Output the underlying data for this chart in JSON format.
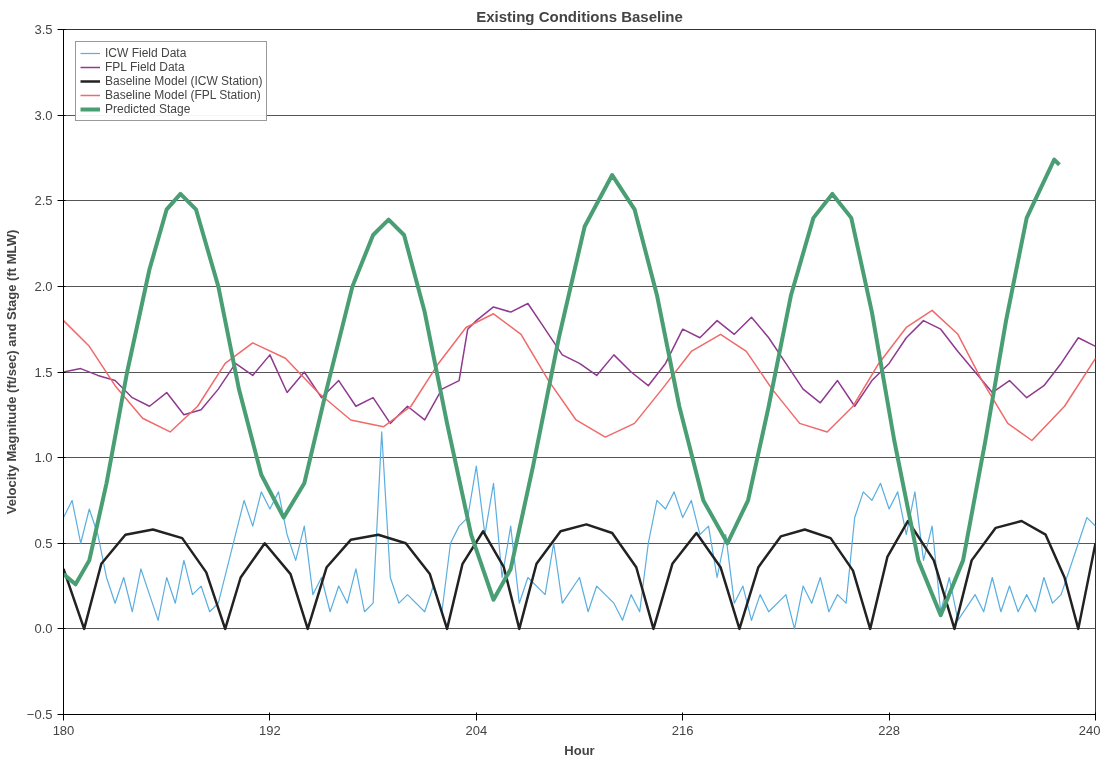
{
  "chart_data": {
    "type": "line",
    "title": "Existing Conditions Baseline",
    "xlabel": "Hour",
    "ylabel": "Velocity Magnitude (ft/sec) and Stage (ft MLW)",
    "xlim": [
      180,
      240
    ],
    "xticks": [
      180,
      192,
      204,
      216,
      228,
      240
    ],
    "ylim": [
      -0.5,
      3.5
    ],
    "yticks": [
      -0.5,
      {
        "value": 0,
        "label": "0.0"
      },
      0.5,
      {
        "value": 1,
        "label": "1.0"
      },
      1.5,
      {
        "value": 2,
        "label": "2.0"
      },
      2.5,
      {
        "value": 3,
        "label": "3.0"
      },
      3.5
    ],
    "grid": "y",
    "legend": "top left",
    "series": [
      {
        "name": "ICW Field Data",
        "color": "#5aaee0",
        "x": [
          180,
          180.5,
          181,
          181.5,
          182,
          182.5,
          183,
          183.5,
          184,
          184.5,
          185,
          185.5,
          186,
          186.5,
          187,
          187.5,
          188,
          188.5,
          189,
          190,
          190.5,
          191,
          191.5,
          192,
          192.5,
          193,
          193.5,
          194,
          194.5,
          195,
          195.5,
          196,
          196.5,
          197,
          197.5,
          198,
          198.5,
          199,
          199.5,
          200,
          201,
          201.5,
          202,
          202.5,
          203,
          203.5,
          204,
          204.5,
          205,
          205.5,
          206,
          206.5,
          207,
          208,
          208.5,
          209,
          210,
          210.5,
          211,
          212,
          212.5,
          213,
          213.5,
          214,
          214.5,
          215,
          215.5,
          216,
          216.5,
          217,
          217.5,
          218,
          218.5,
          219,
          219.5,
          220,
          220.5,
          221,
          222,
          222.5,
          223,
          223.5,
          224,
          224.5,
          225,
          225.5,
          226,
          226.5,
          227,
          227.5,
          228,
          228.5,
          229,
          229.5,
          230,
          230.5,
          231,
          231.5,
          232,
          233,
          233.5,
          234,
          234.5,
          235,
          235.5,
          236,
          236.5,
          237,
          237.5,
          238,
          238.5,
          239,
          239.5,
          240
        ],
        "values": [
          0.65,
          0.75,
          0.5,
          0.7,
          0.55,
          0.3,
          0.15,
          0.3,
          0.1,
          0.35,
          0.2,
          0.05,
          0.3,
          0.15,
          0.4,
          0.2,
          0.25,
          0.1,
          0.15,
          0.55,
          0.75,
          0.6,
          0.8,
          0.7,
          0.8,
          0.55,
          0.4,
          0.6,
          0.2,
          0.3,
          0.1,
          0.25,
          0.15,
          0.35,
          0.1,
          0.15,
          1.15,
          0.3,
          0.15,
          0.2,
          0.1,
          0.25,
          0.1,
          0.5,
          0.6,
          0.65,
          0.95,
          0.55,
          0.85,
          0.3,
          0.6,
          0.15,
          0.3,
          0.2,
          0.5,
          0.15,
          0.3,
          0.1,
          0.25,
          0.15,
          0.05,
          0.2,
          0.1,
          0.5,
          0.75,
          0.7,
          0.8,
          0.65,
          0.75,
          0.55,
          0.6,
          0.3,
          0.55,
          0.15,
          0.25,
          0.05,
          0.2,
          0.1,
          0.2,
          0.0,
          0.25,
          0.15,
          0.3,
          0.1,
          0.2,
          0.15,
          0.65,
          0.8,
          0.75,
          0.85,
          0.7,
          0.8,
          0.55,
          0.8,
          0.4,
          0.6,
          0.1,
          0.3,
          0.05,
          0.2,
          0.1,
          0.3,
          0.1,
          0.25,
          0.1,
          0.2,
          0.1,
          0.3,
          0.15,
          0.2,
          0.35,
          0.5,
          0.65,
          0.6
        ]
      },
      {
        "name": "FPL Field Data",
        "color": "#8e3a8e",
        "x": [
          180,
          181,
          182,
          183,
          184,
          185,
          186,
          187,
          188,
          189,
          190,
          191,
          192,
          193,
          194,
          195,
          196,
          197,
          198,
          199,
          200,
          201,
          202,
          203,
          203.5,
          204,
          205,
          206,
          207,
          208,
          209,
          210,
          211,
          212,
          213,
          214,
          215,
          216,
          217,
          218,
          219,
          220,
          221,
          222,
          223,
          224,
          225,
          226,
          227,
          228,
          229,
          230,
          231,
          232,
          233,
          234,
          235,
          236,
          237,
          238,
          239,
          240
        ],
        "values": [
          1.5,
          1.52,
          1.48,
          1.45,
          1.35,
          1.3,
          1.38,
          1.25,
          1.28,
          1.4,
          1.55,
          1.48,
          1.6,
          1.38,
          1.5,
          1.35,
          1.45,
          1.3,
          1.35,
          1.2,
          1.3,
          1.22,
          1.4,
          1.45,
          1.75,
          1.8,
          1.88,
          1.85,
          1.9,
          1.75,
          1.6,
          1.55,
          1.48,
          1.6,
          1.5,
          1.42,
          1.55,
          1.75,
          1.7,
          1.8,
          1.72,
          1.82,
          1.7,
          1.55,
          1.4,
          1.32,
          1.45,
          1.3,
          1.45,
          1.55,
          1.7,
          1.8,
          1.75,
          1.62,
          1.5,
          1.38,
          1.45,
          1.35,
          1.42,
          1.55,
          1.7,
          1.65
        ]
      },
      {
        "name": "Baseline Model (ICW Station)",
        "color": "#222222",
        "x": [
          180,
          181.2,
          182.2,
          183.6,
          185.2,
          186.9,
          188.3,
          189.4,
          190.3,
          191.7,
          193.2,
          194.2,
          195.3,
          196.7,
          198.3,
          199.9,
          201.3,
          202.3,
          203.2,
          204.4,
          205.6,
          206.5,
          207.5,
          208.9,
          210.4,
          211.9,
          213.3,
          214.3,
          215.4,
          216.8,
          218.2,
          219.3,
          220.4,
          221.7,
          223.1,
          224.6,
          225.9,
          226.9,
          227.9,
          229.1,
          230.6,
          231.8,
          232.8,
          234.2,
          235.7,
          237.1,
          238.2,
          239.0,
          240
        ],
        "values": [
          0.35,
          0,
          0.38,
          0.55,
          0.58,
          0.53,
          0.33,
          0,
          0.3,
          0.5,
          0.32,
          0,
          0.36,
          0.52,
          0.55,
          0.5,
          0.32,
          0,
          0.38,
          0.57,
          0.36,
          0,
          0.38,
          0.57,
          0.61,
          0.56,
          0.36,
          0,
          0.38,
          0.56,
          0.36,
          0,
          0.36,
          0.54,
          0.58,
          0.53,
          0.34,
          0,
          0.42,
          0.63,
          0.4,
          0,
          0.4,
          0.59,
          0.63,
          0.55,
          0.3,
          0,
          0.5
        ]
      },
      {
        "name": "Baseline Model (FPL Station)",
        "color": "#f06a6a",
        "x": [
          180,
          181.5,
          183,
          184.6,
          186.2,
          187.8,
          189.4,
          191,
          192.9,
          194.8,
          196.7,
          198.6,
          200.2,
          201.8,
          203.4,
          205,
          206.6,
          208.2,
          209.8,
          211.5,
          213.2,
          214.8,
          216.5,
          218.2,
          219.7,
          221.2,
          222.8,
          224.4,
          225.9,
          227.4,
          229,
          230.5,
          232,
          233.4,
          234.9,
          236.3,
          238.2,
          240
        ],
        "values": [
          1.8,
          1.65,
          1.42,
          1.23,
          1.15,
          1.3,
          1.55,
          1.67,
          1.58,
          1.38,
          1.22,
          1.18,
          1.3,
          1.55,
          1.76,
          1.84,
          1.72,
          1.45,
          1.22,
          1.12,
          1.2,
          1.4,
          1.62,
          1.72,
          1.62,
          1.4,
          1.2,
          1.15,
          1.3,
          1.55,
          1.76,
          1.86,
          1.72,
          1.45,
          1.2,
          1.1,
          1.3,
          1.58
        ]
      },
      {
        "name": "Predicted Stage",
        "color": "#4a9e74",
        "x": [
          180,
          180.7,
          181.5,
          182.5,
          183.7,
          185,
          186,
          186.8,
          187.7,
          189,
          190.2,
          191.5,
          192.8,
          194,
          195.3,
          196.8,
          198,
          198.9,
          199.8,
          201,
          202.3,
          203.7,
          205,
          206,
          207.3,
          208.8,
          210.3,
          211.9,
          213.2,
          214.5,
          215.8,
          217.2,
          218.6,
          219.8,
          221,
          222.3,
          223.6,
          224.7,
          225.8,
          227,
          228.3,
          229.7,
          231,
          232.3,
          233.6,
          234.8,
          236,
          237.6,
          237.9
        ],
        "values": [
          0.32,
          0.26,
          0.4,
          0.85,
          1.5,
          2.1,
          2.45,
          2.54,
          2.45,
          2.0,
          1.4,
          0.9,
          0.65,
          0.85,
          1.4,
          2.0,
          2.3,
          2.39,
          2.3,
          1.85,
          1.2,
          0.55,
          0.17,
          0.35,
          0.95,
          1.7,
          2.35,
          2.65,
          2.45,
          1.95,
          1.3,
          0.75,
          0.5,
          0.75,
          1.3,
          1.95,
          2.4,
          2.54,
          2.4,
          1.85,
          1.1,
          0.4,
          0.08,
          0.4,
          1.1,
          1.8,
          2.4,
          2.74,
          2.71
        ]
      }
    ]
  }
}
